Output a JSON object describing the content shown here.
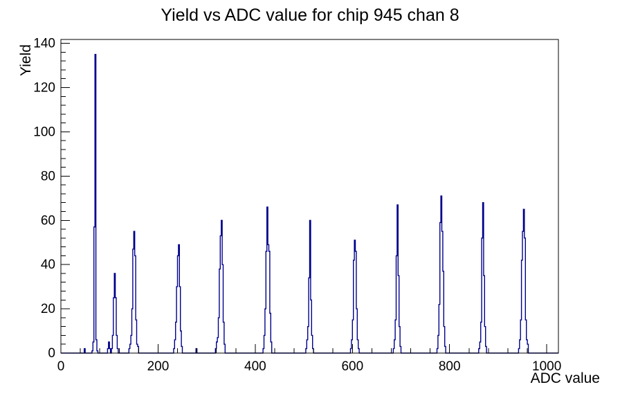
{
  "title": "Yield vs ADC value for chip 945 chan 8",
  "colors": {
    "line": "#00008b",
    "axis": "#000000",
    "background": "#ffffff"
  },
  "chart_data": {
    "type": "bar",
    "subtype": "step-histogram",
    "title": "Yield vs ADC value for chip 945 chan 8",
    "xlabel": "ADC value",
    "ylabel": "Yield",
    "xlim": [
      0,
      1024
    ],
    "ylim": [
      0,
      141.75
    ],
    "x_major_ticks": [
      0,
      200,
      400,
      600,
      800,
      1000
    ],
    "x_minor_step": 40,
    "y_major_ticks": [
      0,
      20,
      40,
      60,
      80,
      100,
      120,
      140
    ],
    "y_minor_step": 4,
    "grid": false,
    "legend": false,
    "bin_width": 2,
    "peaks": [
      {
        "adc": 70,
        "yield": 135
      },
      {
        "adc": 110,
        "yield": 36
      },
      {
        "adc": 150,
        "yield": 55
      },
      {
        "adc": 242,
        "yield": 49
      },
      {
        "adc": 330,
        "yield": 60
      },
      {
        "adc": 424,
        "yield": 66
      },
      {
        "adc": 512,
        "yield": 60
      },
      {
        "adc": 604,
        "yield": 51
      },
      {
        "adc": 692,
        "yield": 67
      },
      {
        "adc": 782,
        "yield": 71
      },
      {
        "adc": 868,
        "yield": 68
      },
      {
        "adc": 952,
        "yield": 65
      }
    ],
    "bins": [
      [
        0,
        0
      ],
      [
        48,
        2
      ],
      [
        50,
        0
      ],
      [
        64,
        1
      ],
      [
        66,
        5
      ],
      [
        68,
        57
      ],
      [
        70,
        135
      ],
      [
        72,
        6
      ],
      [
        74,
        1
      ],
      [
        76,
        0
      ],
      [
        96,
        2
      ],
      [
        98,
        5
      ],
      [
        100,
        2
      ],
      [
        102,
        0
      ],
      [
        104,
        2
      ],
      [
        106,
        8
      ],
      [
        108,
        25
      ],
      [
        110,
        36
      ],
      [
        112,
        25
      ],
      [
        114,
        8
      ],
      [
        116,
        2
      ],
      [
        118,
        0
      ],
      [
        140,
        2
      ],
      [
        142,
        4
      ],
      [
        144,
        8
      ],
      [
        146,
        20
      ],
      [
        148,
        47
      ],
      [
        150,
        55
      ],
      [
        152,
        44
      ],
      [
        154,
        15
      ],
      [
        156,
        4
      ],
      [
        158,
        3
      ],
      [
        160,
        0
      ],
      [
        232,
        2
      ],
      [
        234,
        6
      ],
      [
        236,
        14
      ],
      [
        238,
        30
      ],
      [
        240,
        44
      ],
      [
        242,
        49
      ],
      [
        244,
        30
      ],
      [
        246,
        10
      ],
      [
        248,
        3
      ],
      [
        250,
        0
      ],
      [
        278,
        2
      ],
      [
        280,
        0
      ],
      [
        318,
        2
      ],
      [
        320,
        5
      ],
      [
        322,
        7
      ],
      [
        324,
        16
      ],
      [
        326,
        38
      ],
      [
        328,
        53
      ],
      [
        330,
        60
      ],
      [
        332,
        40
      ],
      [
        334,
        14
      ],
      [
        336,
        4
      ],
      [
        338,
        0
      ],
      [
        416,
        2
      ],
      [
        418,
        8
      ],
      [
        420,
        20
      ],
      [
        422,
        46
      ],
      [
        424,
        66
      ],
      [
        426,
        49
      ],
      [
        428,
        46
      ],
      [
        430,
        18
      ],
      [
        432,
        5
      ],
      [
        434,
        0
      ],
      [
        504,
        2
      ],
      [
        506,
        6
      ],
      [
        508,
        12
      ],
      [
        510,
        34
      ],
      [
        512,
        60
      ],
      [
        514,
        24
      ],
      [
        516,
        8
      ],
      [
        518,
        2
      ],
      [
        520,
        0
      ],
      [
        596,
        2
      ],
      [
        598,
        6
      ],
      [
        600,
        15
      ],
      [
        602,
        42
      ],
      [
        604,
        51
      ],
      [
        606,
        46
      ],
      [
        608,
        20
      ],
      [
        610,
        6
      ],
      [
        612,
        2
      ],
      [
        614,
        0
      ],
      [
        684,
        2
      ],
      [
        686,
        6
      ],
      [
        688,
        15
      ],
      [
        690,
        44
      ],
      [
        692,
        67
      ],
      [
        694,
        35
      ],
      [
        696,
        12
      ],
      [
        698,
        3
      ],
      [
        700,
        0
      ],
      [
        774,
        2
      ],
      [
        776,
        8
      ],
      [
        778,
        22
      ],
      [
        780,
        59
      ],
      [
        782,
        71
      ],
      [
        784,
        55
      ],
      [
        786,
        37
      ],
      [
        788,
        12
      ],
      [
        790,
        3
      ],
      [
        792,
        0
      ],
      [
        860,
        2
      ],
      [
        862,
        5
      ],
      [
        864,
        14
      ],
      [
        866,
        52
      ],
      [
        868,
        68
      ],
      [
        870,
        35
      ],
      [
        872,
        12
      ],
      [
        874,
        3
      ],
      [
        876,
        0
      ],
      [
        942,
        2
      ],
      [
        944,
        6
      ],
      [
        946,
        15
      ],
      [
        948,
        42
      ],
      [
        950,
        55
      ],
      [
        952,
        65
      ],
      [
        954,
        52
      ],
      [
        956,
        15
      ],
      [
        958,
        6
      ],
      [
        960,
        4
      ],
      [
        962,
        0
      ],
      [
        1024,
        0
      ]
    ]
  }
}
